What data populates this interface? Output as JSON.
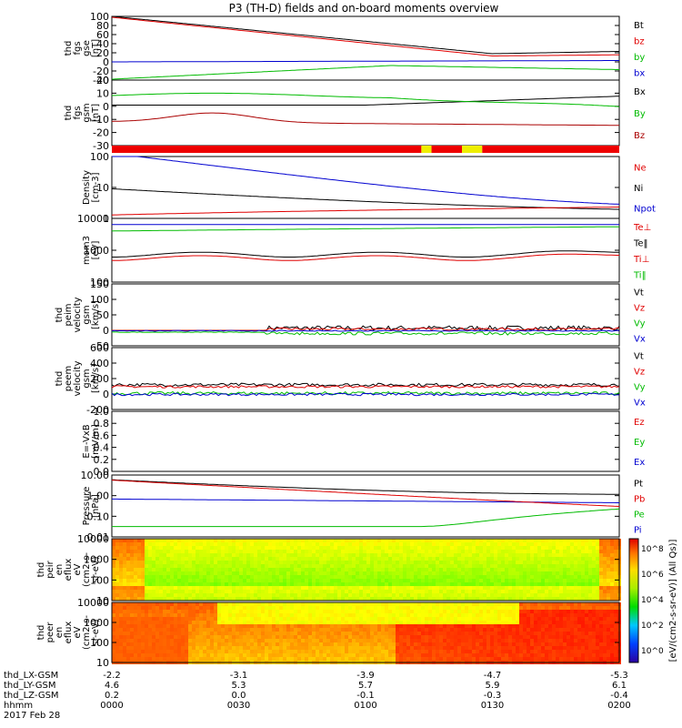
{
  "title": "P3 (TH-D) fields and on-board moments overview",
  "colorbar": {
    "label": "[eV/(cm2-s-sr-eV)] (All Qs)]",
    "ticks": [
      "10^8",
      "10^6",
      "10^4",
      "10^2",
      "10^0"
    ]
  },
  "footer": {
    "rows": [
      {
        "label": "thd_LX-GSM",
        "values": [
          "-2.2",
          "-3.1",
          "-3.9",
          "-4.7",
          "-5.3"
        ]
      },
      {
        "label": "thd_LY-GSM",
        "values": [
          "4.6",
          "5.3",
          "5.7",
          "5.9",
          "6.1"
        ]
      },
      {
        "label": "thd_LZ-GSM",
        "values": [
          "0.2",
          "0.0",
          "-0.1",
          "-0.3",
          "-0.4"
        ]
      },
      {
        "label": "hhmm",
        "values": [
          "0000",
          "0030",
          "0100",
          "0130",
          "0200"
        ]
      }
    ],
    "date": "2017 Feb 28"
  },
  "chart_data": [
    {
      "type": "line",
      "ylabel": [
        "thd",
        "fgs",
        "gse",
        "[nT]"
      ],
      "ylim": [
        -40,
        100
      ],
      "yticks": [
        "100",
        "80",
        "60",
        "40",
        "20",
        "0",
        "-20",
        "-40"
      ],
      "legend": [
        {
          "name": "Bt",
          "color": "#000000"
        },
        {
          "name": "bz",
          "color": "#e00000"
        },
        {
          "name": "by",
          "color": "#00bb00"
        },
        {
          "name": "bx",
          "color": "#0000d0"
        }
      ]
    },
    {
      "type": "line",
      "ylabel": [
        "thd",
        "fgs",
        "gsm",
        "[nT]"
      ],
      "ylim": [
        -35,
        20
      ],
      "yticks": [
        "20",
        "10",
        "0",
        "-10",
        "-20",
        "-30"
      ],
      "legend": [
        {
          "name": "Bx",
          "color": "#000000"
        },
        {
          "name": "By",
          "color": "#00bb00"
        },
        {
          "name": "Bz",
          "color": "#aa0000"
        }
      ]
    },
    {
      "type": "bar",
      "name": "mode bar",
      "segments": [
        {
          "from": 0.0,
          "to": 0.61,
          "color": "#ee0000"
        },
        {
          "from": 0.61,
          "to": 0.63,
          "color": "#eeee00"
        },
        {
          "from": 0.63,
          "to": 0.69,
          "color": "#ee0000"
        },
        {
          "from": 0.69,
          "to": 0.73,
          "color": "#eeee00"
        },
        {
          "from": 0.73,
          "to": 1.0,
          "color": "#ee0000"
        }
      ]
    },
    {
      "type": "line",
      "scale": "log",
      "ylabel": [
        "Density",
        "[cm-3]"
      ],
      "ylim": [
        0.5,
        200
      ],
      "yticks": [
        "100",
        "10",
        "1"
      ],
      "legend": [
        {
          "name": "Ne",
          "color": "#e00000"
        },
        {
          "name": "Ni",
          "color": "#000000"
        },
        {
          "name": "Npot",
          "color": "#0000d0"
        }
      ]
    },
    {
      "type": "line",
      "scale": "log",
      "ylabel": [
        "mom3",
        "[eV]"
      ],
      "ylim": [
        50,
        10000
      ],
      "yticks": [
        "10000",
        "1000",
        "100"
      ],
      "legend": [
        {
          "name": "Te⊥",
          "color": "#e00000"
        },
        {
          "name": "Te‖",
          "color": "#000000"
        },
        {
          "name": "Ti⊥",
          "color": "#e00000"
        },
        {
          "name": "Ti‖",
          "color": "#00bb00"
        }
      ]
    },
    {
      "type": "line",
      "ylabel": [
        "thd",
        "peim",
        "velocity",
        "gsm",
        "[km/s]"
      ],
      "ylim": [
        -50,
        150
      ],
      "yticks": [
        "150",
        "100",
        "50",
        "0",
        "-50"
      ],
      "legend": [
        {
          "name": "Vt",
          "color": "#000000"
        },
        {
          "name": "Vz",
          "color": "#e00000"
        },
        {
          "name": "Vy",
          "color": "#00bb00"
        },
        {
          "name": "Vx",
          "color": "#0000d0"
        }
      ]
    },
    {
      "type": "line",
      "ylabel": [
        "thd",
        "peem",
        "velocity",
        "gsm",
        "[km/s]"
      ],
      "ylim": [
        -200,
        600
      ],
      "yticks": [
        "600",
        "400",
        "200",
        "0",
        "-200"
      ],
      "legend": [
        {
          "name": "Vt",
          "color": "#000000"
        },
        {
          "name": "Vz",
          "color": "#e00000"
        },
        {
          "name": "Vy",
          "color": "#00bb00"
        },
        {
          "name": "Vx",
          "color": "#0000d0"
        }
      ]
    },
    {
      "type": "line",
      "ylabel": [
        "E=-VxB",
        "[mV/m]"
      ],
      "ylim": [
        0,
        1
      ],
      "yticks": [
        "1.0",
        "0.8",
        "0.6",
        "0.4",
        "0.2",
        "0.0"
      ],
      "legend": [
        {
          "name": "Ez",
          "color": "#e00000"
        },
        {
          "name": "Ey",
          "color": "#00bb00"
        },
        {
          "name": "Ex",
          "color": "#0000d0"
        }
      ]
    },
    {
      "type": "line",
      "scale": "log",
      "ylabel": [
        "Pressure",
        "[nPa]"
      ],
      "ylim": [
        0.005,
        20
      ],
      "yticks": [
        "10.00",
        "1.00",
        "0.10",
        "0.01"
      ],
      "legend": [
        {
          "name": "Pt",
          "color": "#000000"
        },
        {
          "name": "Pb",
          "color": "#e00000"
        },
        {
          "name": "Pe",
          "color": "#00bb00"
        },
        {
          "name": "Pi",
          "color": "#0000d0"
        }
      ]
    },
    {
      "type": "heatmap",
      "ylabel": [
        "thd",
        "peir",
        "en",
        "eflux",
        "eV",
        "(cm2-s-",
        "sr-eV)"
      ],
      "ylim": [
        5,
        20000
      ],
      "yticks": [
        "10000",
        "1000",
        "100",
        "10"
      ]
    },
    {
      "type": "heatmap",
      "ylabel": [
        "thd",
        "peer",
        "en",
        "eflux",
        "eV",
        "(cm2-s-",
        "sr-eV)"
      ],
      "ylim": [
        5,
        20000
      ],
      "yticks": [
        "10000",
        "1000",
        "100",
        "10"
      ]
    }
  ]
}
